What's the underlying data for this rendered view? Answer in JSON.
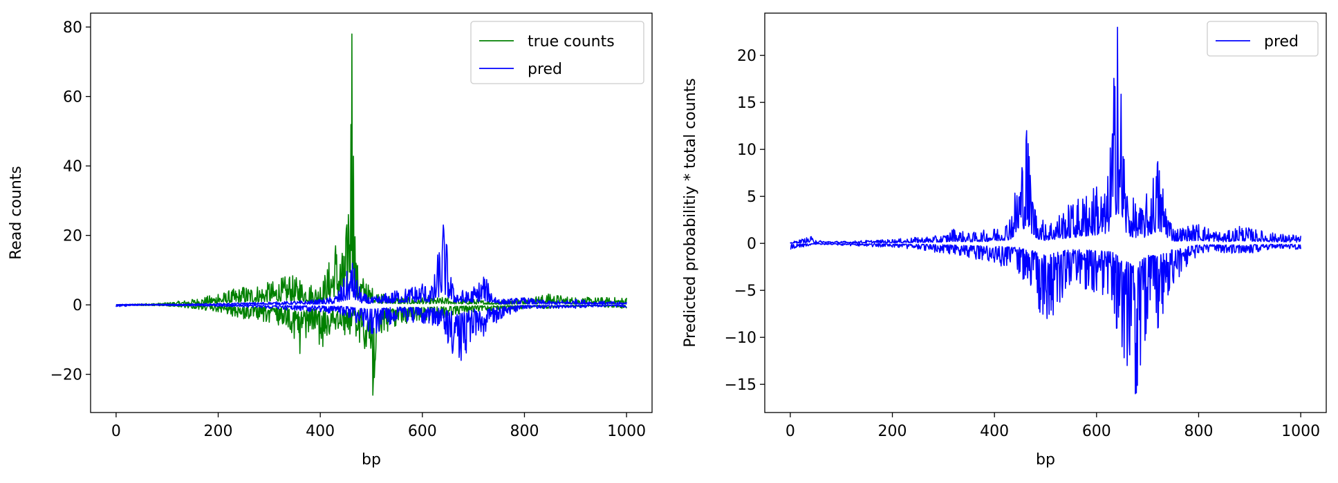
{
  "chart_data": [
    {
      "type": "line",
      "title": "",
      "xlabel": "bp",
      "ylabel": "Read counts",
      "xlim": [
        -50,
        1050
      ],
      "ylim": [
        -31,
        84
      ],
      "xticks": [
        0,
        200,
        400,
        600,
        800,
        1000
      ],
      "yticks": [
        -20,
        0,
        20,
        40,
        60,
        80
      ],
      "xtick_labels": [
        "0",
        "200",
        "400",
        "600",
        "800",
        "1000"
      ],
      "ytick_labels": [
        "−20",
        "0",
        "20",
        "40",
        "60",
        "80"
      ],
      "legend": {
        "position": "upper-right",
        "entries": [
          "true counts",
          "pred"
        ]
      },
      "grid": false,
      "series": [
        {
          "name": "true counts",
          "color": "#008000",
          "strand": "positive",
          "x": [
            0,
            50,
            100,
            150,
            200,
            250,
            300,
            340,
            360,
            400,
            430,
            445,
            455,
            462,
            470,
            490,
            520,
            560,
            600,
            650,
            700,
            750,
            800,
            850,
            900,
            950,
            1000
          ],
          "y": [
            0,
            0.3,
            0.6,
            1.5,
            3,
            5,
            6,
            8,
            7,
            5,
            17,
            14,
            26,
            78,
            12,
            6,
            3,
            2,
            2,
            2,
            1.5,
            1,
            2,
            3,
            2,
            2,
            2
          ]
        },
        {
          "name": "true counts",
          "color": "#008000",
          "strand": "negative",
          "x": [
            0,
            50,
            100,
            150,
            200,
            250,
            300,
            340,
            360,
            380,
            405,
            430,
            470,
            490,
            503,
            520,
            560,
            600,
            650,
            700,
            750,
            800,
            850,
            900,
            950,
            1000
          ],
          "y": [
            0,
            -0.2,
            -0.3,
            -1,
            -2,
            -4,
            -5,
            -6,
            -14,
            -6,
            -12,
            -7,
            -9,
            -12,
            -26,
            -8,
            -5,
            -5,
            -3,
            -2,
            -1.5,
            -1,
            -1,
            -0.5,
            -0.5,
            -1
          ]
        },
        {
          "name": "pred",
          "color": "#0000ff",
          "strand": "positive",
          "x": [
            0,
            50,
            100,
            150,
            200,
            250,
            300,
            350,
            400,
            430,
            463,
            480,
            500,
            550,
            580,
            600,
            620,
            641,
            660,
            690,
            720,
            750,
            800,
            850,
            900,
            950,
            1000
          ],
          "y": [
            0.1,
            0.3,
            0.2,
            0.3,
            0.4,
            0.6,
            0.8,
            1,
            1.5,
            2.5,
            12,
            3.5,
            2,
            4,
            5,
            6,
            5,
            23,
            5,
            3.5,
            8,
            1.5,
            2,
            1,
            1.5,
            1,
            0.8
          ]
        },
        {
          "name": "pred",
          "color": "#0000ff",
          "strand": "negative",
          "x": [
            0,
            50,
            100,
            150,
            200,
            250,
            300,
            350,
            400,
            450,
            503,
            550,
            600,
            630,
            650,
            660,
            676,
            700,
            720,
            750,
            800,
            850,
            900,
            950,
            1000
          ],
          "y": [
            -0.6,
            -0.1,
            -0.2,
            -0.3,
            -0.4,
            -0.6,
            -1,
            -1.5,
            -2,
            -3,
            -8,
            -4,
            -5,
            -6,
            -11,
            -13,
            -16,
            -8,
            -9,
            -4,
            -1,
            -1,
            -1,
            -0.5,
            -0.6
          ]
        }
      ]
    },
    {
      "type": "line",
      "title": "",
      "xlabel": "bp",
      "ylabel": "Predicted probabilitiy * total counts",
      "xlim": [
        -50,
        1050
      ],
      "ylim": [
        -18,
        24.5
      ],
      "xticks": [
        0,
        200,
        400,
        600,
        800,
        1000
      ],
      "yticks": [
        -15,
        -10,
        -5,
        0,
        5,
        10,
        15,
        20
      ],
      "xtick_labels": [
        "0",
        "200",
        "400",
        "600",
        "800",
        "1000"
      ],
      "ytick_labels": [
        "−15",
        "−10",
        "−5",
        "0",
        "5",
        "10",
        "15",
        "20"
      ],
      "legend": {
        "position": "upper-right",
        "entries": [
          "pred"
        ]
      },
      "grid": false,
      "series": [
        {
          "name": "pred",
          "color": "#0000ff",
          "strand": "positive",
          "x": [
            0,
            40,
            50,
            100,
            150,
            200,
            250,
            300,
            320,
            350,
            400,
            430,
            463,
            480,
            500,
            550,
            580,
            600,
            620,
            641,
            660,
            690,
            720,
            750,
            800,
            850,
            880,
            900,
            950,
            1000
          ],
          "y": [
            0.1,
            0.7,
            0.3,
            0.2,
            0.3,
            0.4,
            0.6,
            0.8,
            1.5,
            1,
            1.5,
            2.5,
            12,
            3.5,
            2,
            4,
            5,
            6,
            5,
            23,
            5,
            3.5,
            8.7,
            1.5,
            2,
            1,
            1.8,
            1.5,
            1,
            0.8
          ]
        },
        {
          "name": "pred",
          "color": "#0000ff",
          "strand": "negative",
          "x": [
            0,
            50,
            100,
            150,
            200,
            250,
            300,
            350,
            400,
            450,
            503,
            550,
            600,
            630,
            650,
            660,
            676,
            700,
            720,
            750,
            800,
            850,
            900,
            950,
            1000
          ],
          "y": [
            -0.6,
            -0.1,
            -0.2,
            -0.3,
            -0.4,
            -0.6,
            -1,
            -1.5,
            -2,
            -3,
            -8,
            -4,
            -5,
            -6,
            -11,
            -13,
            -16,
            -8,
            -9,
            -4,
            -1,
            -1,
            -1,
            -0.5,
            -0.6
          ]
        }
      ]
    }
  ]
}
